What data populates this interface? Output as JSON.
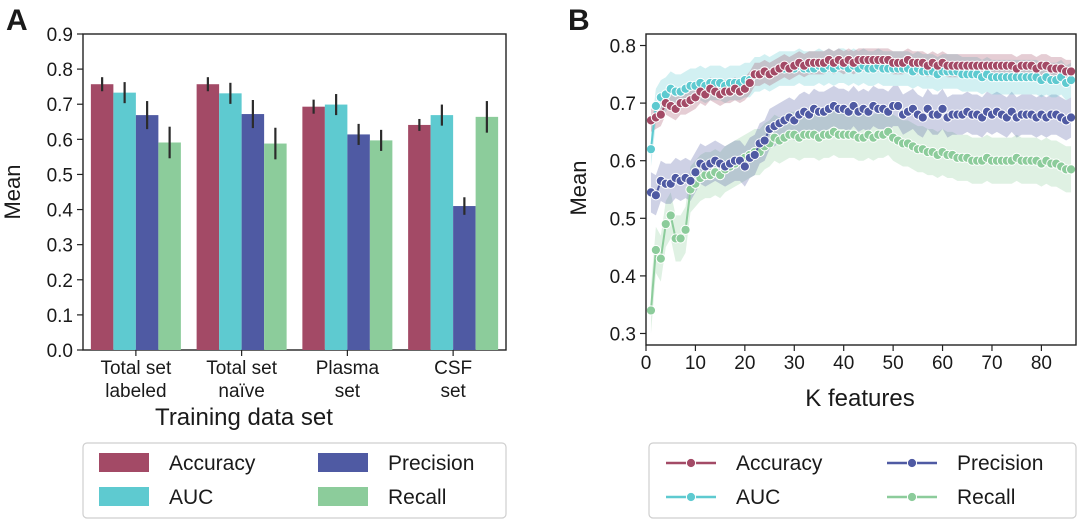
{
  "panels": {
    "a_label": "A",
    "b_label": "B"
  },
  "colors": {
    "accuracy": "#a34a66",
    "auc": "#5ecad0",
    "precision": "#4f5aa3",
    "recall": "#8ccc9b"
  },
  "chart_data": [
    {
      "type": "bar",
      "title": "",
      "xlabel": "Training data set",
      "ylabel": "Mean",
      "ylim": [
        0,
        0.9
      ],
      "yticks": [
        "0.0",
        "0.1",
        "0.2",
        "0.3",
        "0.4",
        "0.5",
        "0.6",
        "0.7",
        "0.8",
        "0.9"
      ],
      "categories": [
        [
          "Total set",
          "labeled"
        ],
        [
          "Total set",
          "naïve"
        ],
        [
          "Plasma",
          "set"
        ],
        [
          "CSF",
          "set"
        ]
      ],
      "series": [
        {
          "name": "Accuracy",
          "values": [
            0.757,
            0.757,
            0.693,
            0.641
          ],
          "err": [
            0.02,
            0.02,
            0.02,
            0.017
          ]
        },
        {
          "name": "AUC",
          "values": [
            0.733,
            0.731,
            0.699,
            0.669
          ],
          "err": [
            0.03,
            0.03,
            0.03,
            0.03
          ]
        },
        {
          "name": "Precision",
          "values": [
            0.669,
            0.672,
            0.614,
            0.41
          ],
          "err": [
            0.04,
            0.04,
            0.03,
            0.025
          ]
        },
        {
          "name": "Recall",
          "values": [
            0.591,
            0.588,
            0.597,
            0.664
          ],
          "err": [
            0.045,
            0.045,
            0.03,
            0.045
          ]
        }
      ],
      "legend": [
        "Accuracy",
        "Precision",
        "AUC",
        "Recall"
      ],
      "legend_position": "below"
    },
    {
      "type": "line",
      "title": "",
      "xlabel": "K features",
      "ylabel": "Mean",
      "xlim": [
        0,
        87
      ],
      "ylim": [
        0.28,
        0.82
      ],
      "xticks": [
        "0",
        "10",
        "20",
        "30",
        "40",
        "50",
        "60",
        "70",
        "80"
      ],
      "yticks": [
        "0.3",
        "0.4",
        "0.5",
        "0.6",
        "0.7",
        "0.8"
      ],
      "x": [
        1,
        2,
        3,
        4,
        5,
        6,
        7,
        8,
        9,
        10,
        11,
        12,
        13,
        14,
        15,
        16,
        17,
        18,
        19,
        20,
        21,
        22,
        23,
        24,
        25,
        26,
        27,
        28,
        29,
        30,
        31,
        32,
        33,
        34,
        35,
        36,
        37,
        38,
        39,
        40,
        41,
        42,
        43,
        44,
        45,
        46,
        47,
        48,
        49,
        50,
        51,
        52,
        53,
        54,
        55,
        56,
        57,
        58,
        59,
        60,
        61,
        62,
        63,
        64,
        65,
        66,
        67,
        68,
        69,
        70,
        71,
        72,
        73,
        74,
        75,
        76,
        77,
        78,
        79,
        80,
        81,
        82,
        83,
        84,
        85,
        86
      ],
      "series": [
        {
          "name": "Accuracy",
          "band": 0.02,
          "values": [
            0.67,
            0.675,
            0.68,
            0.7,
            0.695,
            0.69,
            0.7,
            0.7,
            0.705,
            0.71,
            0.72,
            0.715,
            0.725,
            0.72,
            0.715,
            0.72,
            0.72,
            0.725,
            0.72,
            0.725,
            0.735,
            0.75,
            0.75,
            0.755,
            0.75,
            0.755,
            0.76,
            0.765,
            0.76,
            0.765,
            0.77,
            0.765,
            0.77,
            0.77,
            0.77,
            0.77,
            0.775,
            0.77,
            0.775,
            0.77,
            0.775,
            0.77,
            0.775,
            0.775,
            0.775,
            0.775,
            0.775,
            0.775,
            0.775,
            0.77,
            0.77,
            0.77,
            0.775,
            0.77,
            0.77,
            0.77,
            0.765,
            0.77,
            0.765,
            0.77,
            0.765,
            0.765,
            0.765,
            0.765,
            0.765,
            0.765,
            0.765,
            0.765,
            0.765,
            0.765,
            0.765,
            0.765,
            0.765,
            0.765,
            0.76,
            0.765,
            0.765,
            0.765,
            0.76,
            0.765,
            0.765,
            0.76,
            0.76,
            0.76,
            0.755,
            0.755
          ]
        },
        {
          "name": "AUC",
          "band": 0.03,
          "values": [
            0.62,
            0.695,
            0.71,
            0.715,
            0.725,
            0.72,
            0.72,
            0.725,
            0.73,
            0.73,
            0.735,
            0.73,
            0.735,
            0.735,
            0.735,
            0.73,
            0.735,
            0.735,
            0.735,
            0.74,
            0.74,
            0.75,
            0.75,
            0.755,
            0.75,
            0.755,
            0.76,
            0.76,
            0.76,
            0.76,
            0.765,
            0.76,
            0.76,
            0.76,
            0.765,
            0.76,
            0.765,
            0.76,
            0.765,
            0.765,
            0.76,
            0.765,
            0.76,
            0.765,
            0.76,
            0.76,
            0.765,
            0.76,
            0.76,
            0.76,
            0.76,
            0.76,
            0.76,
            0.755,
            0.76,
            0.755,
            0.755,
            0.755,
            0.75,
            0.755,
            0.755,
            0.755,
            0.755,
            0.75,
            0.75,
            0.75,
            0.75,
            0.745,
            0.75,
            0.745,
            0.745,
            0.745,
            0.745,
            0.745,
            0.745,
            0.745,
            0.745,
            0.745,
            0.745,
            0.74,
            0.745,
            0.74,
            0.74,
            0.745,
            0.735,
            0.74
          ]
        },
        {
          "name": "Precision",
          "band": 0.035,
          "values": [
            0.545,
            0.54,
            0.565,
            0.56,
            0.56,
            0.57,
            0.565,
            0.57,
            0.565,
            0.58,
            0.595,
            0.59,
            0.595,
            0.6,
            0.595,
            0.59,
            0.595,
            0.6,
            0.6,
            0.59,
            0.605,
            0.61,
            0.63,
            0.635,
            0.655,
            0.66,
            0.665,
            0.67,
            0.675,
            0.67,
            0.68,
            0.685,
            0.68,
            0.69,
            0.685,
            0.685,
            0.69,
            0.695,
            0.69,
            0.69,
            0.685,
            0.695,
            0.685,
            0.69,
            0.685,
            0.695,
            0.69,
            0.69,
            0.685,
            0.695,
            0.695,
            0.68,
            0.685,
            0.69,
            0.68,
            0.675,
            0.69,
            0.68,
            0.68,
            0.69,
            0.675,
            0.68,
            0.68,
            0.68,
            0.685,
            0.68,
            0.68,
            0.675,
            0.685,
            0.68,
            0.685,
            0.68,
            0.675,
            0.685,
            0.675,
            0.68,
            0.68,
            0.68,
            0.675,
            0.68,
            0.675,
            0.68,
            0.68,
            0.675,
            0.67,
            0.675
          ]
        },
        {
          "name": "Recall",
          "band": 0.04,
          "values": [
            0.34,
            0.445,
            0.43,
            0.49,
            0.505,
            0.465,
            0.465,
            0.48,
            0.55,
            0.56,
            0.57,
            0.575,
            0.575,
            0.58,
            0.575,
            0.585,
            0.59,
            0.595,
            0.6,
            0.605,
            0.61,
            0.615,
            0.615,
            0.625,
            0.63,
            0.64,
            0.635,
            0.64,
            0.645,
            0.645,
            0.64,
            0.645,
            0.645,
            0.645,
            0.64,
            0.645,
            0.645,
            0.65,
            0.645,
            0.645,
            0.645,
            0.645,
            0.64,
            0.64,
            0.645,
            0.64,
            0.645,
            0.645,
            0.65,
            0.64,
            0.635,
            0.63,
            0.63,
            0.625,
            0.62,
            0.62,
            0.615,
            0.615,
            0.61,
            0.615,
            0.61,
            0.61,
            0.605,
            0.605,
            0.605,
            0.6,
            0.6,
            0.6,
            0.605,
            0.6,
            0.6,
            0.6,
            0.6,
            0.6,
            0.605,
            0.6,
            0.6,
            0.6,
            0.6,
            0.595,
            0.6,
            0.595,
            0.595,
            0.59,
            0.585,
            0.585
          ]
        }
      ],
      "legend": [
        "Accuracy",
        "Precision",
        "AUC",
        "Recall"
      ],
      "legend_position": "below"
    }
  ]
}
